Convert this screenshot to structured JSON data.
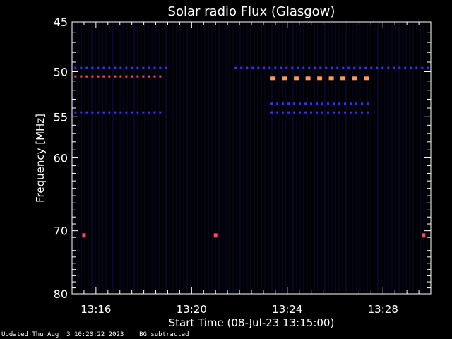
{
  "chart_data": {
    "type": "heatmap",
    "title": "Solar radio Flux (Glasgow)",
    "xlabel": "Start Time (08-Jul-23 13:15:00)",
    "ylabel": "Frequency [MHz]",
    "x_unit": "minutes after 13:15:00",
    "xlim": [
      0.0,
      15.0
    ],
    "ylim": [
      45,
      80
    ],
    "y_scale": "log",
    "x_ticks": [
      {
        "x": 1,
        "label": "13:16"
      },
      {
        "x": 5,
        "label": "13:20"
      },
      {
        "x": 9,
        "label": "13:24"
      },
      {
        "x": 13,
        "label": "13:28"
      }
    ],
    "y_ticks": [
      {
        "y": 45,
        "label": "45"
      },
      {
        "y": 50,
        "label": "50"
      },
      {
        "y": 55,
        "label": "55"
      },
      {
        "y": 60,
        "label": "60"
      },
      {
        "y": 70,
        "label": "70"
      },
      {
        "y": 80,
        "label": "80"
      }
    ],
    "colors": {
      "background": "#000000",
      "low": "#1a1a66",
      "medium": "#3333ff",
      "high": "#ff4466",
      "peak": "#ff9955"
    },
    "emission_bands": [
      {
        "freq": 49.6,
        "x_start": 0.1,
        "x_end": 4.0,
        "level": "medium"
      },
      {
        "freq": 49.6,
        "x_start": 6.8,
        "x_end": 15.0,
        "level": "medium"
      },
      {
        "freq": 50.5,
        "x_start": 0.1,
        "x_end": 3.8,
        "level": "high"
      },
      {
        "freq": 50.7,
        "x_start": 8.3,
        "x_end": 12.5,
        "level": "peak"
      },
      {
        "freq": 53.5,
        "x_start": 8.3,
        "x_end": 12.5,
        "level": "medium"
      },
      {
        "freq": 54.5,
        "x_start": 0.1,
        "x_end": 3.8,
        "level": "medium"
      },
      {
        "freq": 54.5,
        "x_start": 8.3,
        "x_end": 12.5,
        "level": "medium"
      },
      {
        "freq": 70.7,
        "x_start": 0.4,
        "x_end": 0.6,
        "level": "high"
      },
      {
        "freq": 70.7,
        "x_start": 5.9,
        "x_end": 6.1,
        "level": "high"
      },
      {
        "freq": 70.7,
        "x_start": 14.6,
        "x_end": 14.8,
        "level": "high"
      }
    ]
  },
  "footer": {
    "updated": "Updated Thu Aug  3 10:20:22 2023",
    "note": "BG subtracted"
  }
}
